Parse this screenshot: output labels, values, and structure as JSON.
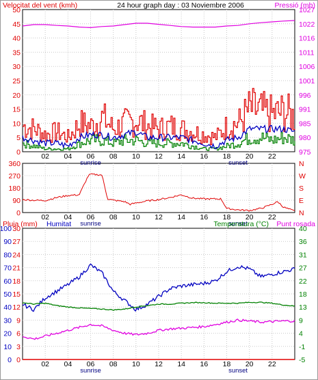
{
  "header": {
    "left": "Velocitat del vent (kmh)",
    "center": "24 hour graph day : 03 Noviembre 2006",
    "right": "Pressió (mb)"
  },
  "x_labels": [
    "02",
    "04",
    "06",
    "08",
    "10",
    "12",
    "14",
    "16",
    "18",
    "20",
    "22"
  ],
  "sunrise_label": "sunrise",
  "sunset_label": "sunset",
  "colors": {
    "wind": "#e00000",
    "avg": "#0000c0",
    "green": "#008000",
    "pressure": "#e000e0",
    "humidity": "#0000c0",
    "temperature": "#008000",
    "dewpoint": "#e000e0",
    "rain": "#e00000"
  },
  "chart_data": [
    {
      "type": "line",
      "title": "24 hour graph day : 03 Noviembre 2006",
      "ylabel": "Velocitat del vent (kmh)",
      "y2label": "Pressió (mb)",
      "ylim": [
        0,
        50
      ],
      "y2lim": [
        975,
        1027
      ],
      "y_ticks": [
        "0",
        "5",
        "10",
        "15",
        "20",
        "25",
        "30",
        "35",
        "40",
        "45",
        "50"
      ],
      "y2_ticks": [
        "975",
        "980",
        "985",
        "991",
        "996",
        "1001",
        "1006",
        "1011",
        "1016",
        "1022",
        "1027"
      ],
      "x_hours": [
        0,
        1,
        2,
        3,
        4,
        5,
        6,
        7,
        8,
        9,
        10,
        11,
        12,
        13,
        14,
        15,
        16,
        17,
        18,
        19,
        20,
        21,
        22,
        23,
        24
      ],
      "series": [
        {
          "name": "",
          "axis": "left",
          "values": [
            9,
            8,
            6,
            7,
            5,
            10,
            9,
            12,
            8,
            10,
            11,
            9,
            8,
            9,
            8,
            7,
            6,
            5,
            9,
            10,
            15,
            14,
            13,
            14,
            12
          ]
        },
        {
          "name": "",
          "axis": "left",
          "values": [
            5,
            4,
            3,
            3,
            2,
            5,
            6,
            6,
            5,
            6,
            7,
            5,
            5,
            5,
            5,
            4,
            3,
            2,
            4,
            5,
            8,
            8,
            8,
            8,
            7
          ]
        },
        {
          "name": "",
          "axis": "left",
          "values": [
            3,
            2,
            1,
            1,
            1,
            3,
            4,
            4,
            3,
            4,
            4,
            3,
            3,
            3,
            3,
            2,
            1,
            1,
            2,
            3,
            5,
            5,
            4,
            5,
            4
          ]
        },
        {
          "name": "Pressió (mb)",
          "axis": "right",
          "values": [
            1021,
            1021.5,
            1021.5,
            1021.2,
            1021,
            1020.6,
            1020.4,
            1020.8,
            1021,
            1021.5,
            1022,
            1022,
            1021.6,
            1021.2,
            1020.8,
            1020.6,
            1020.6,
            1020.6,
            1021,
            1021.2,
            1021.8,
            1022.2,
            1022.5,
            1022.8,
            1023
          ]
        }
      ]
    },
    {
      "type": "line",
      "ylim": [
        0,
        360
      ],
      "y_ticks": [
        "0",
        "90",
        "180",
        "270",
        "360"
      ],
      "y2_ticks": [
        "N",
        "E",
        "S",
        "W",
        "N"
      ],
      "x_hours": [
        0,
        1,
        2,
        3,
        4,
        5,
        5.8,
        6,
        7,
        7.5,
        8,
        9,
        9.5,
        10,
        11,
        12,
        13,
        14,
        15,
        16,
        17,
        17.5,
        18,
        19,
        20,
        21,
        22,
        22.5,
        23,
        24
      ],
      "series": [
        {
          "name": "",
          "values": [
            95,
            90,
            88,
            110,
            125,
            130,
            270,
            280,
            275,
            100,
            90,
            80,
            60,
            70,
            85,
            95,
            110,
            130,
            105,
            100,
            100,
            100,
            30,
            20,
            15,
            30,
            60,
            80,
            40,
            10
          ]
        }
      ]
    },
    {
      "type": "line",
      "ylim": [
        0,
        100
      ],
      "y_ticks": [
        "0",
        "10",
        "20",
        "30",
        "40",
        "50",
        "60",
        "70",
        "80",
        "90",
        "100"
      ],
      "y_ticks_mm": [
        "0",
        "3",
        "6",
        "9",
        "12",
        "15",
        "18",
        "21",
        "24",
        "27",
        "30"
      ],
      "y2lim": [
        -5,
        40
      ],
      "y2_ticks": [
        "-5",
        "-1",
        "4",
        "9",
        "13",
        "18",
        "22",
        "27",
        "31",
        "36",
        "40"
      ],
      "ylabel": "Pluja (mm)",
      "ylabel2": "Humitat",
      "y2label": "Temperatura (°C)",
      "y2label2": "Punt rosada",
      "x_hours": [
        0,
        1,
        2,
        3,
        4,
        5,
        6,
        7,
        8,
        9,
        10,
        11,
        12,
        13,
        14,
        15,
        16,
        17,
        18,
        19,
        20,
        21,
        22,
        23,
        24
      ],
      "series": [
        {
          "name": "Humitat",
          "axis": "left",
          "values": [
            42,
            38,
            47,
            52,
            57,
            63,
            72,
            66,
            52,
            45,
            38,
            42,
            48,
            54,
            56,
            57,
            58,
            60,
            67,
            71,
            69,
            63,
            65,
            67,
            69
          ]
        },
        {
          "name": "Temperatura (°C)",
          "axis": "right",
          "values": [
            14.5,
            14,
            14.3,
            13.5,
            13,
            12.7,
            12.5,
            12.3,
            12,
            12.3,
            13,
            13.5,
            14,
            14,
            14.3,
            14.5,
            14.5,
            14.3,
            14.3,
            14.3,
            14.6,
            14.6,
            14.3,
            13.7,
            13.3
          ]
        },
        {
          "name": "Punt rosada",
          "axis": "right",
          "values": [
            3,
            2,
            3,
            4,
            5,
            6,
            7,
            6.5,
            5,
            4,
            3.5,
            4,
            5,
            5.5,
            5.7,
            6,
            6.3,
            7,
            7.8,
            8.5,
            8.2,
            7.8,
            8,
            8.2,
            8.2
          ]
        },
        {
          "name": "Pluja (mm)",
          "axis": "left",
          "values": [
            0,
            0,
            0,
            0,
            0,
            0,
            0,
            0,
            0,
            0,
            0,
            0,
            0,
            0,
            0,
            0,
            0,
            0,
            0,
            0,
            0,
            0,
            0,
            0,
            0
          ]
        }
      ]
    }
  ],
  "panel3_header": {
    "rain": "Pluja (mm)",
    "humidity": "Humitat",
    "temperature": "Temperatura (°C)",
    "dewpoint": "Punt rosada"
  }
}
